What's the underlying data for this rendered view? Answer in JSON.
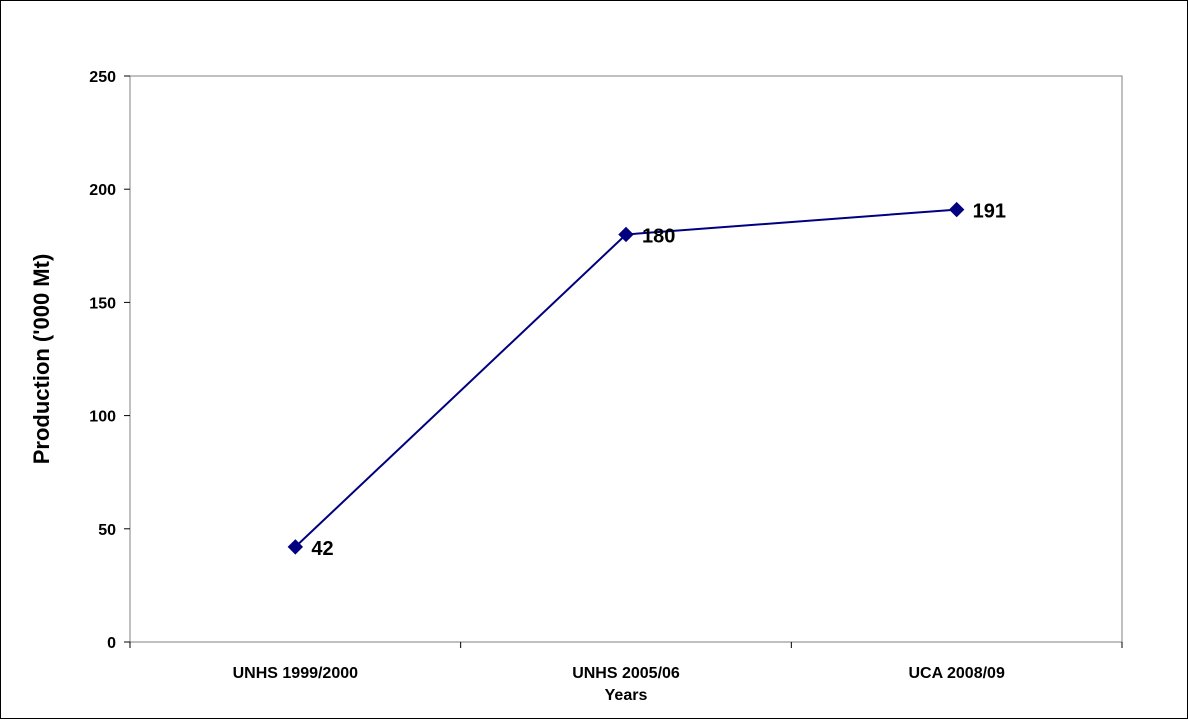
{
  "chart_data": {
    "type": "line",
    "title": "",
    "xlabel": "Years",
    "ylabel": "Production ('000 Mt)",
    "categories": [
      "UNHS 1999/2000",
      "UNHS 2005/06",
      "UCA 2008/09"
    ],
    "series": [
      {
        "values": [
          42,
          180,
          191
        ],
        "color": "#000080"
      }
    ],
    "data_labels": [
      "42",
      "180",
      "191"
    ],
    "ylim": [
      0,
      250
    ],
    "yticks": [
      0,
      50,
      100,
      150,
      200,
      250
    ],
    "ytick_labels": [
      "0",
      "50",
      "100",
      "150",
      "200",
      "250"
    ],
    "grid": false,
    "legend": "none",
    "marker": "diamond",
    "plot_border_color": "#808080"
  }
}
